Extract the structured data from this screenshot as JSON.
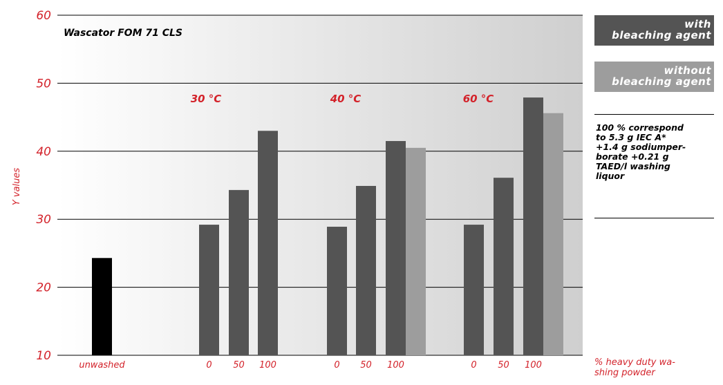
{
  "chart_data": {
    "type": "bar",
    "title": "Wascator FOM 71 CLS",
    "ylabel": "Y values",
    "xlabel": "% heavy duty wa-\nshing powder",
    "ylim": [
      10,
      60
    ],
    "yticks": [
      10,
      20,
      30,
      40,
      50,
      60
    ],
    "grid": true,
    "groups": [
      {
        "label": "",
        "bars": [
          {
            "x_label": "unwashed",
            "series": "unwashed",
            "value": 24.3
          }
        ]
      },
      {
        "label": "30 °C",
        "bars": [
          {
            "x_label": "0",
            "series": "with bleaching agent",
            "value": 29.2
          },
          {
            "x_label": "50",
            "series": "with bleaching agent",
            "value": 34.3
          },
          {
            "x_label": "100",
            "series": "with bleaching agent",
            "value": 43.0
          }
        ]
      },
      {
        "label": "40 °C",
        "bars": [
          {
            "x_label": "0",
            "series": "with bleaching agent",
            "value": 28.9
          },
          {
            "x_label": "50",
            "series": "with bleaching agent",
            "value": 34.9
          },
          {
            "x_label": "100",
            "series": "with bleaching agent",
            "value": 41.5
          },
          {
            "x_label": "",
            "series": "without bleaching agent",
            "value": 40.5
          }
        ]
      },
      {
        "label": "60 °C",
        "bars": [
          {
            "x_label": "0",
            "series": "with bleaching agent",
            "value": 29.2
          },
          {
            "x_label": "50",
            "series": "with bleaching agent",
            "value": 36.1
          },
          {
            "x_label": "100",
            "series": "with bleaching agent",
            "value": 47.9
          },
          {
            "x_label": "",
            "series": "without bleaching agent",
            "value": 45.6
          }
        ]
      }
    ],
    "series_colors": {
      "unwashed": "#000000",
      "with bleaching agent": "#545454",
      "without bleaching agent": "#9d9d9d"
    },
    "legend": [
      {
        "line1": "with",
        "line2": "bleaching agent",
        "color": "#545454"
      },
      {
        "line1": "without",
        "line2": "bleaching agent",
        "color": "#9d9d9d"
      }
    ],
    "note": "100 % correspond\nto 5.3 g IEC A*\n+1.4 g sodiumper-\nborate +0.21 g\nTAED/l washing\nliquor"
  }
}
